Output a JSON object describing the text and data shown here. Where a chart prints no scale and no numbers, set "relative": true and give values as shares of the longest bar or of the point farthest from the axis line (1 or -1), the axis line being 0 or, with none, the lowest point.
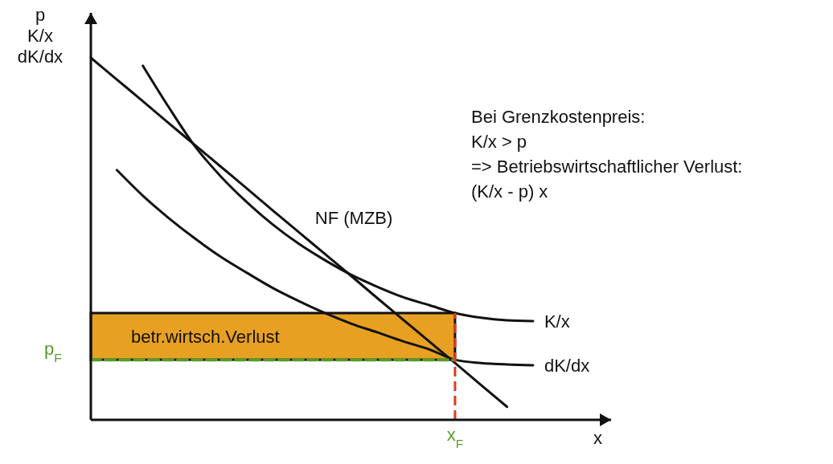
{
  "chart_data": {
    "type": "line",
    "relative": true,
    "xlabel": "x",
    "ylabel": "p\nK/x\ndK/dx",
    "categories": [
      null,
      null,
      null,
      null,
      null,
      null,
      null,
      null,
      null,
      null,
      null,
      null,
      null,
      null,
      null,
      null,
      null,
      null
    ],
    "series": [
      {
        "name": "NF (MZB)",
        "color": "#111111",
        "values": [
          1,
          0.94,
          0.88,
          0.819,
          0.759,
          0.699,
          0.639,
          0.578,
          0.518,
          0.458,
          0.398,
          0.337,
          0.277,
          0.217,
          0.157,
          0.096,
          0.036,
          null
        ]
      },
      {
        "name": "K/x",
        "color": "#111111",
        "values": [
          null,
          null,
          0.978,
          0.863,
          0.756,
          0.672,
          0.601,
          0.539,
          0.486,
          0.441,
          0.401,
          0.368,
          0.339,
          0.317,
          0.295,
          0.282,
          0.275,
          0.273
        ]
      },
      {
        "name": "dK/dx",
        "color": "#111111",
        "values": [
          null,
          0.69,
          0.619,
          0.557,
          0.501,
          0.45,
          0.406,
          0.364,
          0.328,
          0.295,
          0.266,
          0.242,
          0.217,
          0.195,
          0.166,
          0.157,
          0.153,
          0.151
        ]
      },
      {
        "color": "#5a9a2a",
        "line_style": "dashed",
        "values": [
          0.166,
          0.166,
          0.166,
          0.166,
          0.166,
          0.166,
          0.166,
          0.166,
          0.166,
          0.166,
          0.166,
          0.166,
          0.166,
          0.166,
          0.166,
          null,
          null,
          null
        ]
      }
    ],
    "bands": [
      {
        "axis": "y",
        "from": 0.166,
        "to": 0.295,
        "label": "betr.wirtsch.Verlust",
        "color": "#e8a022"
      }
    ],
    "ref_lines": [
      {
        "axis": "x",
        "label": "x$_{F}$",
        "color": "#e03a1e",
        "line_style": "dashed"
      }
    ],
    "annotations": [
      "p$_{F}$",
      "Bei Grenzkostenpreis:",
      "K/x > p",
      "=> Betriebswirtschaftlicher  Verlust:",
      "(K/x - p) x"
    ]
  }
}
